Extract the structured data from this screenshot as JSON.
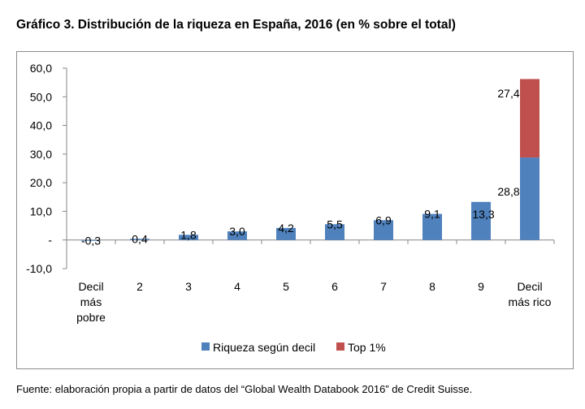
{
  "title": "Gráfico 3. Distribución de la riqueza en España, 2016 (en % sobre el total)",
  "source": "Fuente: elaboración propia a partir de datos del “Global Wealth Databook 2016” de Credit Suisse.",
  "chart_data": {
    "type": "bar",
    "stacked": true,
    "categories": [
      [
        "Decil",
        "más",
        "pobre"
      ],
      [
        "2"
      ],
      [
        "3"
      ],
      [
        "4"
      ],
      [
        "5"
      ],
      [
        "6"
      ],
      [
        "7"
      ],
      [
        "8"
      ],
      [
        "9"
      ],
      [
        "Decil",
        "más rico"
      ]
    ],
    "series": [
      {
        "name": "Riqueza según decil",
        "color": "#4f81bd",
        "values": [
          -0.3,
          0.4,
          1.8,
          3.0,
          4.2,
          5.5,
          6.9,
          9.1,
          13.3,
          28.8
        ],
        "labels": [
          "-0,3",
          "0,4",
          "1,8",
          "3,0",
          "4,2",
          "5,5",
          "6,9",
          "9,1",
          "13,3",
          "28,8"
        ]
      },
      {
        "name": "Top 1%",
        "color": "#c0504d",
        "values": [
          0,
          0,
          0,
          0,
          0,
          0,
          0,
          0,
          0,
          27.4
        ],
        "labels": [
          "",
          "",
          "",
          "",
          "",
          "",
          "",
          "",
          "",
          "27,4"
        ]
      }
    ],
    "y_ticks": [
      {
        "value": 60,
        "label": "60,0"
      },
      {
        "value": 50,
        "label": "50,0"
      },
      {
        "value": 40,
        "label": "40,0"
      },
      {
        "value": 30,
        "label": "30,0"
      },
      {
        "value": 20,
        "label": "20,0"
      },
      {
        "value": 10,
        "label": "10,0"
      },
      {
        "value": 0,
        "label": "-"
      },
      {
        "value": -10,
        "label": "-10,0"
      }
    ],
    "ylim": [
      -10,
      60
    ],
    "grid": false,
    "legend_position": "bottom"
  }
}
